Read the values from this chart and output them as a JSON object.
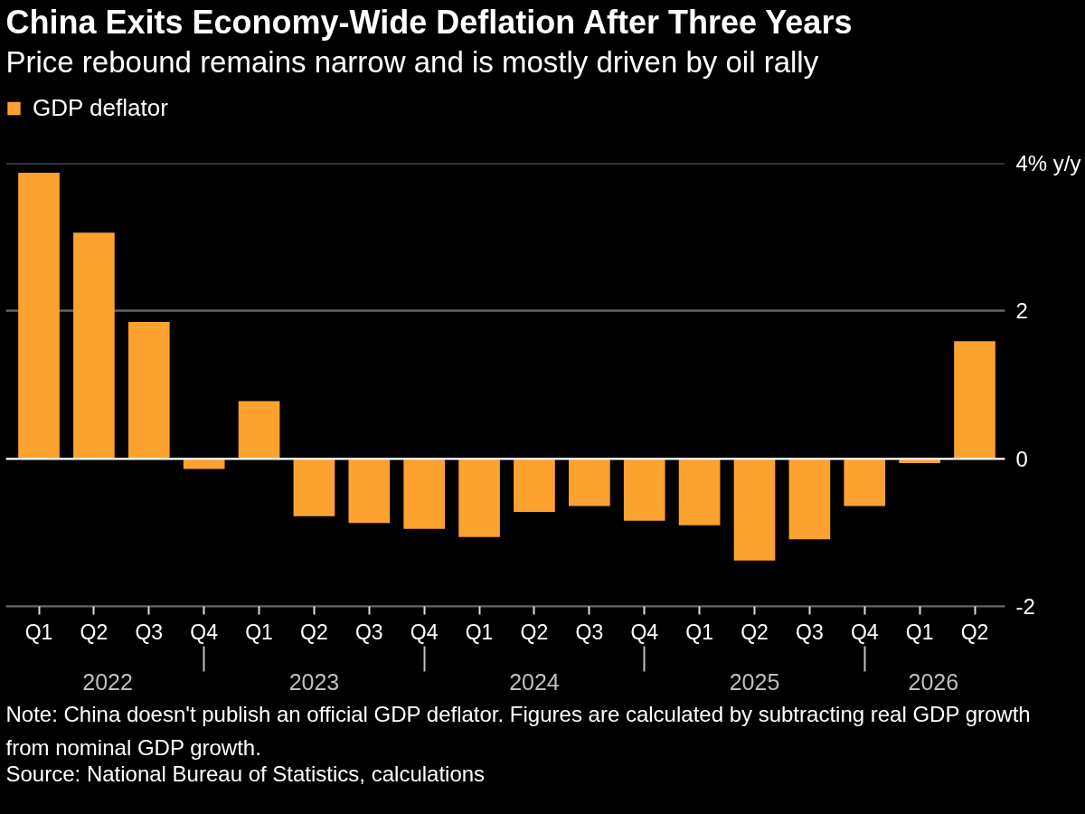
{
  "chart_data": {
    "type": "bar",
    "title": "China Exits Economy-Wide Deflation After Three Years",
    "subtitle": "Price rebound remains narrow and is mostly driven by oil rally",
    "categories": [
      "Q1",
      "Q2",
      "Q3",
      "Q4",
      "Q1",
      "Q2",
      "Q3",
      "Q4",
      "Q1",
      "Q2",
      "Q3",
      "Q4",
      "Q1",
      "Q2",
      "Q3",
      "Q4",
      "Q1",
      "Q2"
    ],
    "series": [
      {
        "name": "GDP deflator",
        "color": "#fda22f",
        "values": [
          3.87,
          3.06,
          1.85,
          -0.14,
          0.78,
          -0.78,
          -0.87,
          -0.95,
          -1.06,
          -0.72,
          -0.64,
          -0.84,
          -0.9,
          -1.38,
          -1.09,
          -0.64,
          -0.06,
          1.59
        ]
      }
    ],
    "ylim": [
      -2,
      4
    ],
    "yticks": [
      -2,
      0,
      2,
      {
        "value": 4,
        "label": "4% y/y"
      }
    ],
    "grid": "y",
    "legend": "top left",
    "ref_lines": [
      {
        "axis": "y",
        "value": 0,
        "color": "#ffffff"
      }
    ],
    "annotations": [
      "2022",
      "2023",
      "2024",
      "2025",
      "2026",
      "Note: China doesn't publish an official GDP deflator. Figures are calculated by subtracting real GDP growth from nominal GDP growth.",
      "Source: National Bureau of Statistics, calculations"
    ]
  }
}
